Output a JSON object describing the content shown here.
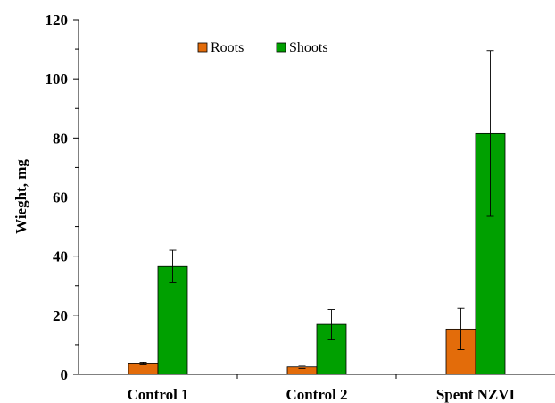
{
  "chart_data": {
    "type": "bar",
    "title": "",
    "xlabel": "",
    "ylabel": "Wieght, mg",
    "ylim": [
      0,
      120
    ],
    "yticks": [
      "0",
      "20",
      "40",
      "60",
      "80",
      "100",
      "120"
    ],
    "categories": [
      "Control 1",
      "Control 2",
      "Spent NZVI"
    ],
    "series": [
      {
        "name": "Roots",
        "values": [
          3.8,
          2.5,
          15.3
        ],
        "errors": [
          0.3,
          0.5,
          7.0
        ],
        "color": "#E36C0A"
      },
      {
        "name": "Shoots",
        "values": [
          36.5,
          16.9,
          81.5
        ],
        "errors": [
          5.5,
          5.0,
          28.0
        ],
        "color": "#00A000"
      }
    ],
    "grid": false,
    "legend_position": "top-center"
  }
}
